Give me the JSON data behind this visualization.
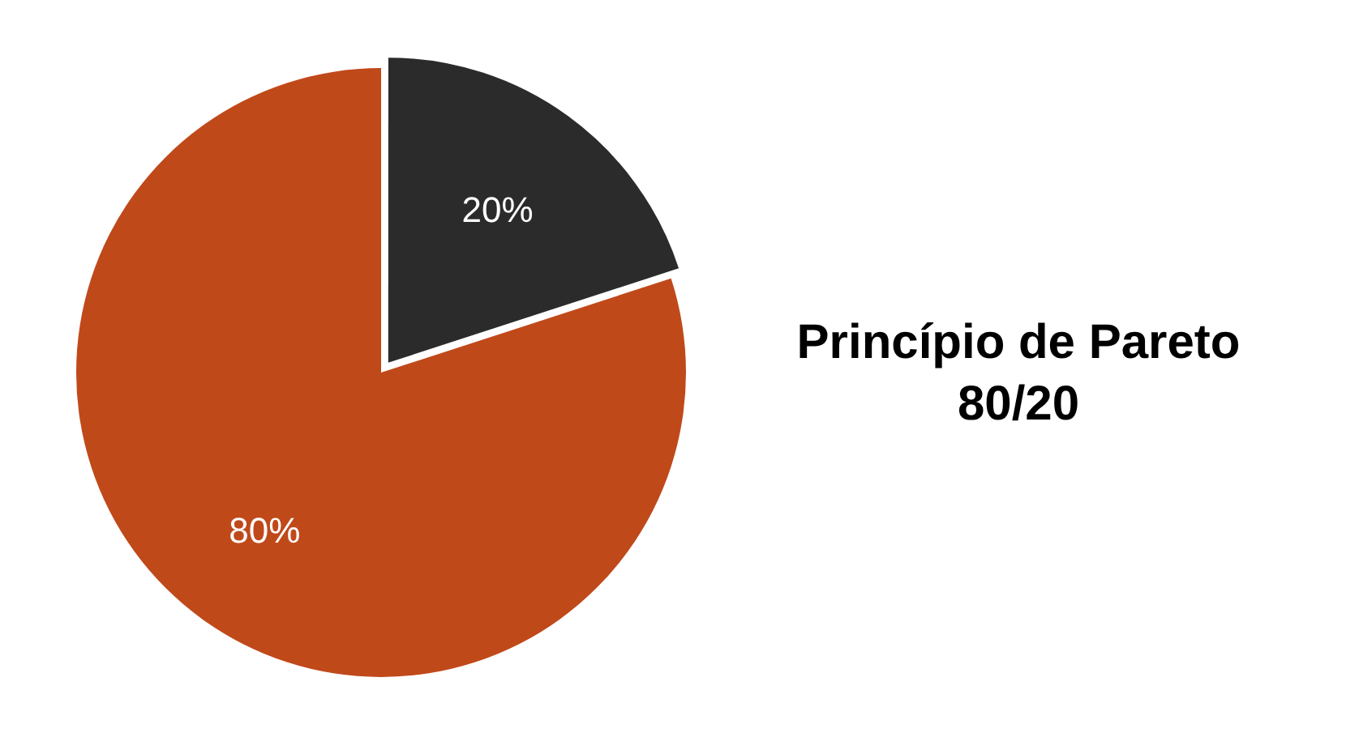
{
  "chart_data": {
    "type": "pie",
    "title": "Princípio de Pareto\n80/20",
    "categories": [
      null,
      null
    ],
    "values": [
      20,
      80
    ],
    "colors": [
      "#2b2b2b",
      "#c0491a"
    ],
    "value_labels": [
      "20%",
      "80%"
    ],
    "legend": false
  }
}
